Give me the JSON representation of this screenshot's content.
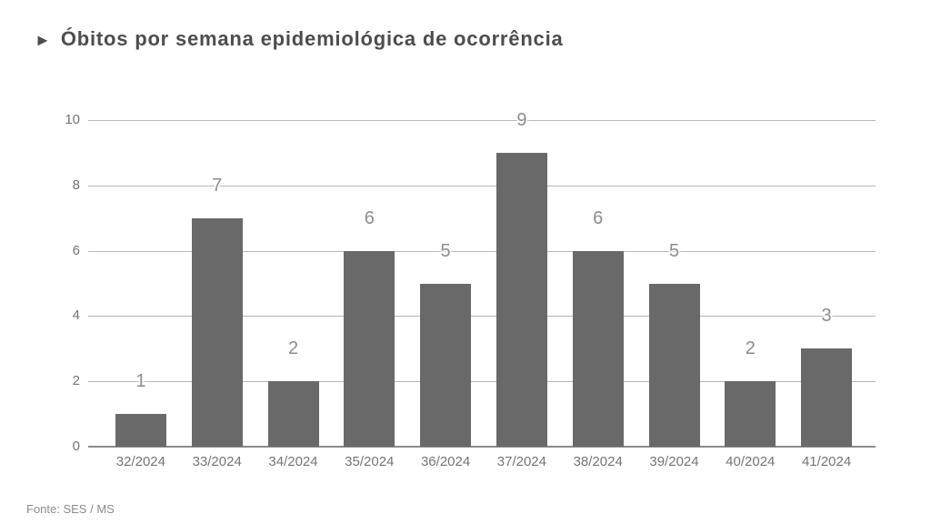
{
  "header": {
    "arrow_glyph": "►",
    "title": "Óbitos por semana epidemiológica de ocorrência"
  },
  "footer": {
    "source": "Fonte: SES / MS"
  },
  "colors": {
    "background": "#ffffff",
    "bar": "#696969",
    "title": "#4d4d4d",
    "gridline": "#b6b6b6",
    "axis_line": "#8c8c8c",
    "tick_label": "#757575",
    "data_label": "#8c8c8c"
  },
  "chart_data": {
    "type": "bar",
    "title": "Óbitos por semana epidemiológica de ocorrência",
    "categories": [
      "32/2024",
      "33/2024",
      "34/2024",
      "35/2024",
      "36/2024",
      "37/2024",
      "38/2024",
      "39/2024",
      "40/2024",
      "41/2024"
    ],
    "values": [
      1,
      7,
      2,
      6,
      5,
      9,
      6,
      5,
      2,
      3
    ],
    "xlabel": "",
    "ylabel": "",
    "ylim": [
      0,
      10
    ],
    "yticks": [
      0,
      2,
      4,
      6,
      8,
      10
    ],
    "grid": true,
    "legend": "none",
    "data_labels": true,
    "source": "Fonte: SES / MS"
  }
}
